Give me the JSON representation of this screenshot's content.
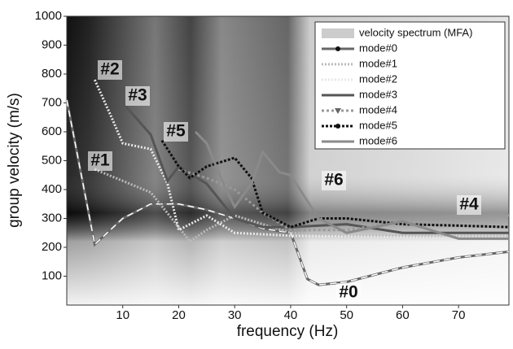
{
  "chart_data": {
    "type": "line",
    "xlabel": "frequency (Hz)",
    "ylabel": "group velocity (m/s)",
    "xlim": [
      0,
      79
    ],
    "ylim": [
      0,
      1000
    ],
    "xticks": [
      10,
      20,
      30,
      40,
      50,
      60,
      70
    ],
    "yticks": [
      100,
      200,
      300,
      400,
      500,
      600,
      700,
      800,
      900,
      1000
    ],
    "spectrum_label": "velocity spectrum (MFA)",
    "legend": "upper right",
    "annotations": [
      "#0",
      "#1",
      "#2",
      "#3",
      "#4",
      "#5",
      "#6"
    ],
    "series": [
      {
        "name": "mode#0",
        "color": "#666666",
        "marker": "circle",
        "x": [
          0,
          5,
          10,
          15,
          20,
          25,
          30,
          35,
          40,
          43,
          45,
          50,
          60,
          70,
          79
        ],
        "values": [
          710,
          210,
          300,
          350,
          350,
          330,
          300,
          265,
          250,
          90,
          70,
          80,
          130,
          165,
          185
        ]
      },
      {
        "name": "mode#1",
        "color": "#bbbbbb",
        "marker": "none",
        "x": [
          5,
          10,
          15,
          20,
          22,
          25,
          30,
          35,
          40,
          50,
          60,
          79
        ],
        "values": [
          470,
          430,
          390,
          270,
          220,
          260,
          310,
          280,
          250,
          240,
          240,
          240
        ]
      },
      {
        "name": "mode#2",
        "color": "#e8e8e8",
        "marker": "none",
        "x": [
          5,
          8,
          10,
          15,
          18,
          20,
          25,
          30,
          40,
          79
        ],
        "values": [
          780,
          650,
          560,
          540,
          420,
          260,
          310,
          250,
          240,
          230
        ]
      },
      {
        "name": "mode#3",
        "color": "#555555",
        "marker": "none",
        "x": [
          10,
          15,
          18,
          20,
          25,
          30,
          35,
          40,
          50,
          60,
          70,
          79
        ],
        "values": [
          700,
          590,
          430,
          480,
          420,
          300,
          270,
          270,
          280,
          250,
          250,
          250
        ]
      },
      {
        "name": "mode#4",
        "color": "#999999",
        "marker": "triangle",
        "x": [
          20,
          25,
          30,
          35,
          40,
          50,
          60,
          70,
          79
        ],
        "values": [
          470,
          440,
          400,
          320,
          260,
          260,
          290,
          310,
          310
        ]
      },
      {
        "name": "mode#5",
        "color": "#111111",
        "marker": "circle",
        "x": [
          17,
          20,
          22,
          25,
          30,
          33,
          35,
          40,
          45,
          50,
          60,
          70,
          79
        ],
        "values": [
          570,
          480,
          440,
          480,
          510,
          440,
          320,
          270,
          300,
          300,
          280,
          275,
          270
        ]
      },
      {
        "name": "mode#6",
        "color": "#8a8a8a",
        "marker": "none",
        "x": [
          23,
          25,
          28,
          30,
          33,
          35,
          38,
          40,
          45,
          50,
          60,
          70,
          79
        ],
        "values": [
          600,
          560,
          420,
          340,
          420,
          530,
          460,
          450,
          300,
          250,
          290,
          230,
          230
        ]
      }
    ]
  }
}
